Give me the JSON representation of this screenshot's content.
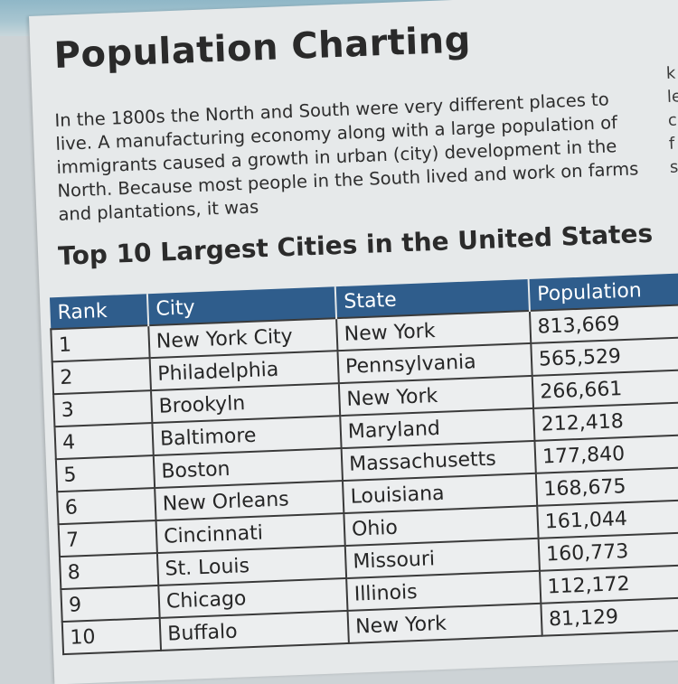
{
  "title": "Population Charting",
  "paragraph": "In the 1800s the North and South were very different places to live. A manufacturing economy along with a large population of immigrants caused a growth in urban (city) development in the North. Because most people in the South lived and work on farms and plantations, it was",
  "side_fragments": [
    "k",
    "le",
    "c",
    "f",
    "s"
  ],
  "table_title": "Top 10 Largest Cities in the United States",
  "table": {
    "headers": [
      "Rank",
      "City",
      "State",
      "Population"
    ],
    "rows": [
      [
        "1",
        "New York City",
        "New York",
        "813,669"
      ],
      [
        "2",
        "Philadelphia",
        "Pennsylvania",
        "565,529"
      ],
      [
        "3",
        "Brookyln",
        "New York",
        "266,661"
      ],
      [
        "4",
        "Baltimore",
        "Maryland",
        "212,418"
      ],
      [
        "5",
        "Boston",
        "Massachusetts",
        "177,840"
      ],
      [
        "6",
        "New Orleans",
        "Louisiana",
        "168,675"
      ],
      [
        "7",
        "Cincinnati",
        "Ohio",
        "161,044"
      ],
      [
        "8",
        "St. Louis",
        "Missouri",
        "160,773"
      ],
      [
        "9",
        "Chicago",
        "Illinois",
        "112,172"
      ],
      [
        "10",
        "Buffalo",
        "New York",
        "81,129"
      ]
    ]
  },
  "colors": {
    "header_bg": "#2f5d8c",
    "page_bg": "#e6e9ea",
    "text": "#2a2a2a"
  }
}
